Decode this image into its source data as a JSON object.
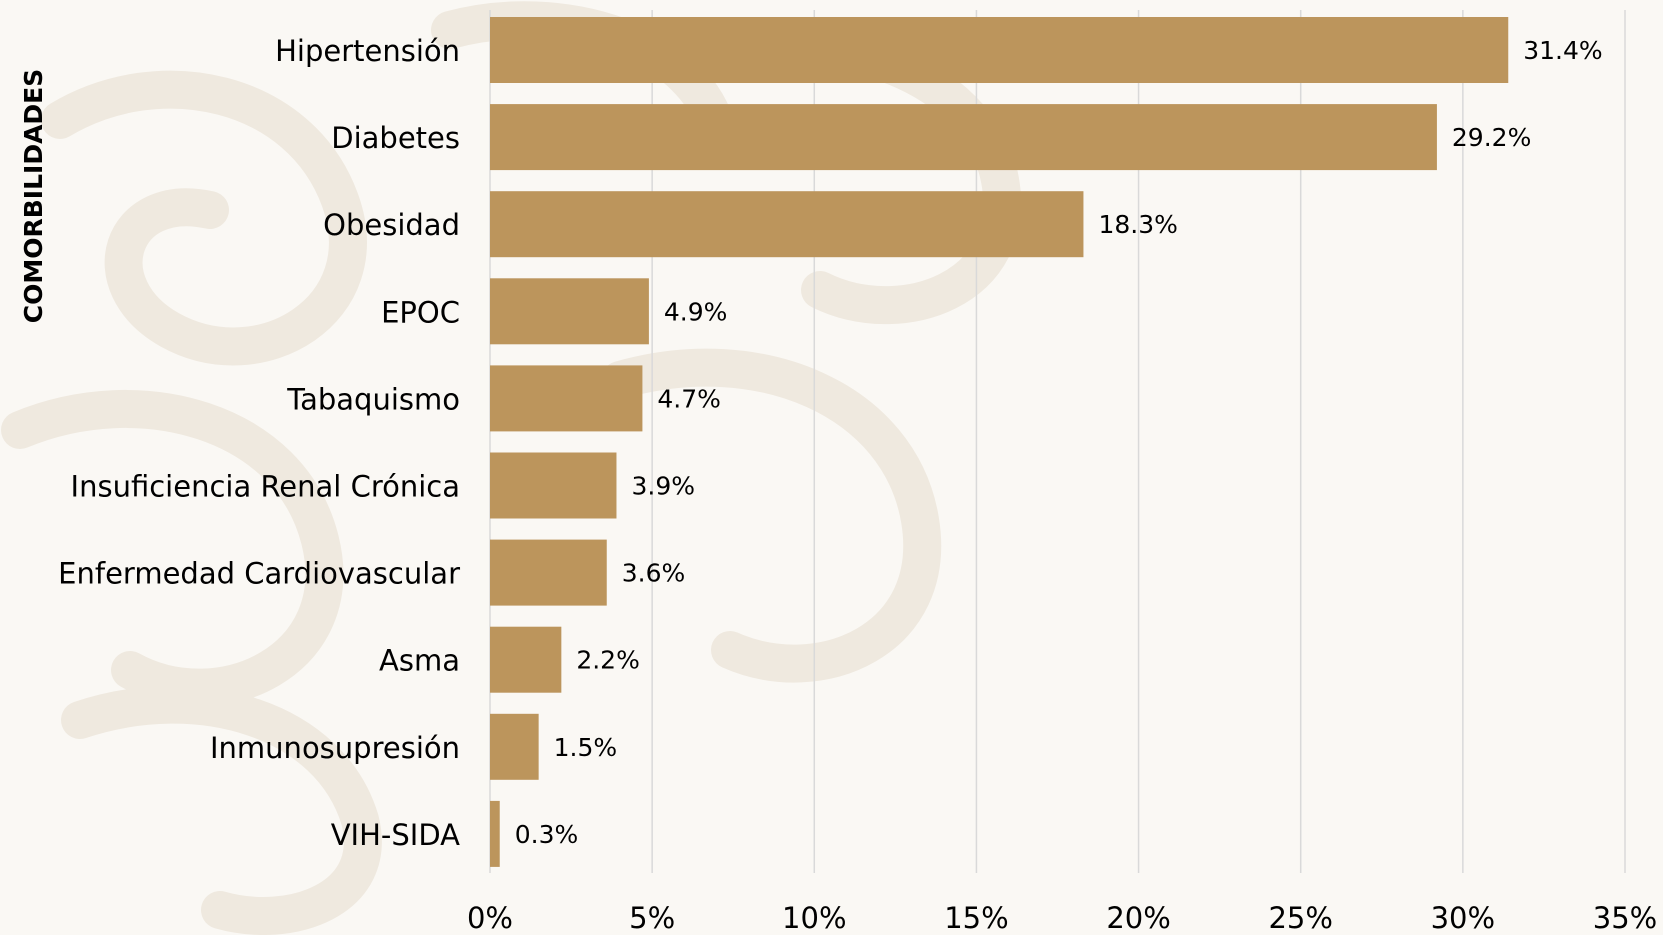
{
  "chart_data": {
    "type": "bar",
    "orientation": "horizontal",
    "ylabel": "COMORBILIDADES",
    "xlabel": "",
    "categories": [
      "Hipertensión",
      "Diabetes",
      "Obesidad",
      "EPOC",
      "Tabaquismo",
      "Insuficiencia Renal Crónica",
      "Enfermedad Cardiovascular",
      "Asma",
      "Inmunosupresión",
      "VIH-SIDA"
    ],
    "values": [
      31.4,
      29.2,
      18.3,
      4.9,
      4.7,
      3.9,
      3.6,
      2.2,
      1.5,
      0.3
    ],
    "value_labels": [
      "31.4%",
      "29.2%",
      "18.3%",
      "4.9%",
      "4.7%",
      "3.9%",
      "3.6%",
      "2.2%",
      "1.5%",
      "0.3%"
    ],
    "xlim": [
      0,
      35
    ],
    "xticks": [
      0,
      5,
      10,
      15,
      20,
      25,
      30,
      35
    ],
    "xtick_labels": [
      "0%",
      "5%",
      "10%",
      "15%",
      "20%",
      "25%",
      "30%",
      "35%"
    ],
    "grid": "vertical",
    "legend": "none",
    "colors": {
      "bar": "#bc955c",
      "grid": "#d9d9d9",
      "text": "#000000",
      "background": "#faf8f4",
      "watermark": "#efe9df"
    }
  }
}
